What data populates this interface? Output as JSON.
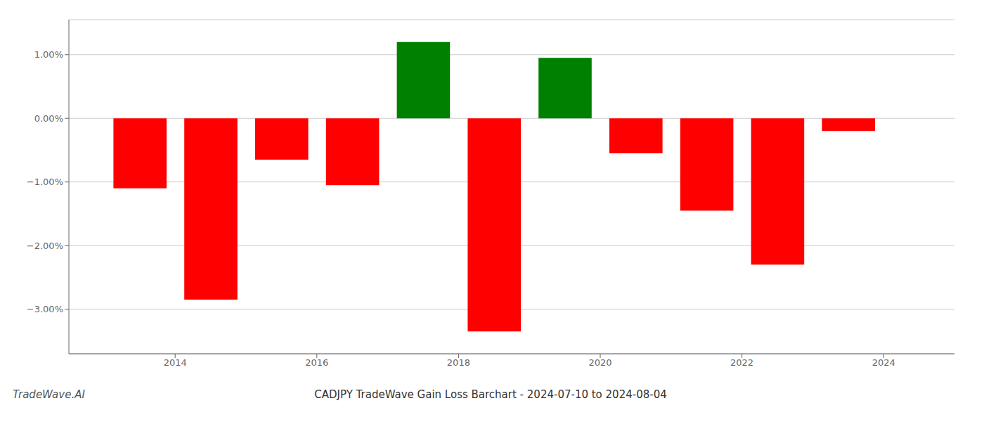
{
  "chart_data": {
    "type": "bar",
    "title": "CADJPY TradeWave Gain Loss Barchart - 2024-07-10 to 2024-08-04",
    "annotations": [
      "TradeWave.AI"
    ],
    "x": [
      2013.5,
      2014.5,
      2015.5,
      2016.5,
      2017.5,
      2018.5,
      2019.5,
      2020.5,
      2021.5,
      2022.5,
      2023.5
    ],
    "values": [
      -1.1,
      -2.85,
      -0.65,
      -1.05,
      1.2,
      -3.35,
      0.95,
      -0.55,
      -1.45,
      -2.3,
      -0.2
    ],
    "colors": [
      "#ff0000",
      "#ff0000",
      "#ff0000",
      "#ff0000",
      "#008000",
      "#ff0000",
      "#008000",
      "#ff0000",
      "#ff0000",
      "#ff0000",
      "#ff0000"
    ],
    "xlim": [
      2012.5,
      2025.0
    ],
    "ylim": [
      -3.7,
      1.55
    ],
    "xticks": [
      2014,
      2016,
      2018,
      2020,
      2022,
      2024
    ],
    "yticks": [
      {
        "value": -3.0,
        "label": "−3.00%"
      },
      {
        "value": -2.0,
        "label": "−2.00%"
      },
      {
        "value": -1.0,
        "label": "−1.00%"
      },
      {
        "value": 0.0,
        "label": "0.00%"
      },
      {
        "value": 1.0,
        "label": "1.00%"
      }
    ],
    "grid": true
  }
}
